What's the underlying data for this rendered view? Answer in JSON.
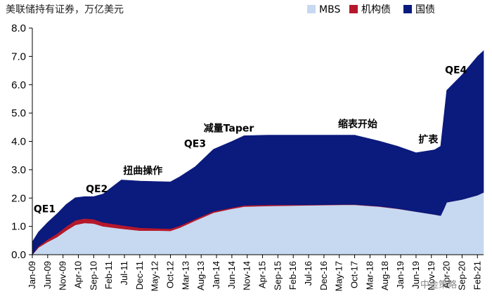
{
  "chart_data": {
    "type": "area",
    "stacked": true,
    "title": "美联储持有证券，万亿美元",
    "ylim": [
      0,
      8
    ],
    "yticks": [
      "0.0",
      "1.0",
      "2.0",
      "3.0",
      "4.0",
      "5.0",
      "6.0",
      "7.0",
      "8.0"
    ],
    "x_tick_labels": [
      "Jan-09",
      "Jun-09",
      "Nov-09",
      "Apr-10",
      "Sep-10",
      "Feb-11",
      "Jul-11",
      "Dec-11",
      "May-12",
      "Oct-12",
      "Mar-13",
      "Aug-13",
      "Jan-14",
      "Jun-14",
      "Nov-14",
      "Apr-15",
      "Sep-15",
      "Feb-16",
      "Jul-16",
      "Dec-16",
      "May-17",
      "Oct-17",
      "Mar-18",
      "Aug-18",
      "Jan-19",
      "Jun-19",
      "Nov-19",
      "Apr-20",
      "Sep-20",
      "Feb-21"
    ],
    "legend_position": "top-right",
    "series": [
      {
        "name": "MBS",
        "color": "#c6d9f0",
        "points": [
          [
            "2009-01",
            0.0
          ],
          [
            "2009-03",
            0.25
          ],
          [
            "2009-06",
            0.45
          ],
          [
            "2009-09",
            0.62
          ],
          [
            "2009-12",
            0.85
          ],
          [
            "2010-03",
            1.05
          ],
          [
            "2010-06",
            1.12
          ],
          [
            "2010-09",
            1.1
          ],
          [
            "2010-12",
            1.0
          ],
          [
            "2011-06",
            0.92
          ],
          [
            "2011-12",
            0.85
          ],
          [
            "2012-06",
            0.85
          ],
          [
            "2012-10",
            0.84
          ],
          [
            "2013-01",
            0.95
          ],
          [
            "2013-06",
            1.2
          ],
          [
            "2013-12",
            1.48
          ],
          [
            "2014-06",
            1.62
          ],
          [
            "2014-10",
            1.7
          ],
          [
            "2015-06",
            1.72
          ],
          [
            "2016-06",
            1.74
          ],
          [
            "2017-06",
            1.76
          ],
          [
            "2017-10",
            1.76
          ],
          [
            "2018-06",
            1.7
          ],
          [
            "2018-12",
            1.62
          ],
          [
            "2019-06",
            1.52
          ],
          [
            "2019-12",
            1.42
          ],
          [
            "2020-02",
            1.38
          ],
          [
            "2020-03",
            1.6
          ],
          [
            "2020-04",
            1.85
          ],
          [
            "2020-09",
            1.95
          ],
          [
            "2021-02",
            2.1
          ],
          [
            "2021-04",
            2.2
          ]
        ]
      },
      {
        "name": "机构债",
        "color": "#b5182b",
        "points": [
          [
            "2009-01",
            0.0
          ],
          [
            "2009-03",
            0.05
          ],
          [
            "2009-06",
            0.09
          ],
          [
            "2009-09",
            0.12
          ],
          [
            "2009-12",
            0.14
          ],
          [
            "2010-03",
            0.16
          ],
          [
            "2010-06",
            0.16
          ],
          [
            "2010-09",
            0.15
          ],
          [
            "2010-12",
            0.14
          ],
          [
            "2011-06",
            0.12
          ],
          [
            "2011-12",
            0.1
          ],
          [
            "2012-06",
            0.08
          ],
          [
            "2012-10",
            0.08
          ],
          [
            "2013-01",
            0.07
          ],
          [
            "2013-06",
            0.06
          ],
          [
            "2013-12",
            0.05
          ],
          [
            "2014-06",
            0.04
          ],
          [
            "2014-10",
            0.04
          ],
          [
            "2015-06",
            0.04
          ],
          [
            "2016-06",
            0.02
          ],
          [
            "2017-06",
            0.01
          ],
          [
            "2017-10",
            0.01
          ],
          [
            "2018-06",
            0.01
          ],
          [
            "2018-12",
            0.01
          ],
          [
            "2019-06",
            0.0
          ],
          [
            "2019-12",
            0.0
          ],
          [
            "2020-02",
            0.0
          ],
          [
            "2020-03",
            0.0
          ],
          [
            "2020-04",
            0.0
          ],
          [
            "2020-09",
            0.0
          ],
          [
            "2021-02",
            0.0
          ],
          [
            "2021-04",
            0.0
          ]
        ]
      },
      {
        "name": "国债",
        "color": "#0a1a7d",
        "points": [
          [
            "2009-01",
            0.45
          ],
          [
            "2009-03",
            0.5
          ],
          [
            "2009-06",
            0.6
          ],
          [
            "2009-09",
            0.7
          ],
          [
            "2009-12",
            0.78
          ],
          [
            "2010-03",
            0.8
          ],
          [
            "2010-06",
            0.77
          ],
          [
            "2010-09",
            0.8
          ],
          [
            "2010-12",
            1.0
          ],
          [
            "2011-06",
            1.6
          ],
          [
            "2011-12",
            1.65
          ],
          [
            "2012-06",
            1.65
          ],
          [
            "2012-10",
            1.65
          ],
          [
            "2013-01",
            1.73
          ],
          [
            "2013-06",
            1.84
          ],
          [
            "2013-12",
            2.19
          ],
          [
            "2014-06",
            2.34
          ],
          [
            "2014-10",
            2.46
          ],
          [
            "2015-06",
            2.46
          ],
          [
            "2016-06",
            2.46
          ],
          [
            "2017-06",
            2.45
          ],
          [
            "2017-10",
            2.45
          ],
          [
            "2018-06",
            2.3
          ],
          [
            "2018-12",
            2.2
          ],
          [
            "2019-06",
            2.08
          ],
          [
            "2019-12",
            2.28
          ],
          [
            "2020-02",
            2.45
          ],
          [
            "2020-03",
            3.2
          ],
          [
            "2020-04",
            3.95
          ],
          [
            "2020-09",
            4.4
          ],
          [
            "2021-02",
            4.9
          ],
          [
            "2021-04",
            5.0
          ]
        ]
      }
    ],
    "annotations": [
      {
        "text": "QE1",
        "at": [
          "2009-05",
          1.5
        ]
      },
      {
        "text": "QE2",
        "at": [
          "2010-10",
          2.2
        ]
      },
      {
        "text": "扭曲操作",
        "at": [
          "2012-01",
          2.85
        ]
      },
      {
        "text": "QE3",
        "at": [
          "2013-06",
          3.8
        ]
      },
      {
        "text": "减量Taper",
        "at": [
          "2014-05",
          4.35
        ]
      },
      {
        "text": "缩表开始",
        "at": [
          "2017-11",
          4.5
        ]
      },
      {
        "text": "扩表",
        "at": [
          "2019-10",
          3.95
        ]
      },
      {
        "text": "QE4",
        "at": [
          "2020-07",
          6.4
        ]
      }
    ],
    "watermark": "中金策略"
  }
}
